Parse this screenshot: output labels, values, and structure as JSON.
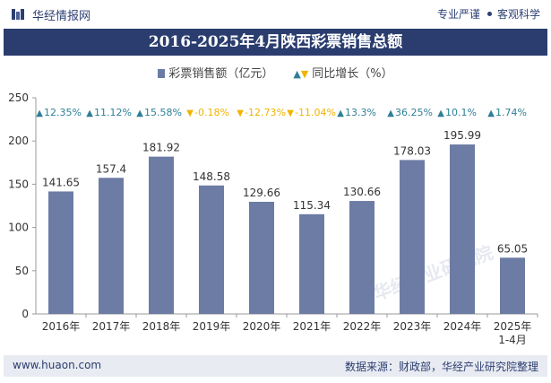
{
  "header": {
    "brand": "华经情报网",
    "tagline_left": "专业严谨",
    "tagline_right": "客观科学"
  },
  "title": "2016-2025年4月陕西彩票销售总额",
  "legend": {
    "bar_label": "彩票销售额（亿元）",
    "line_label": "同比增长（%）"
  },
  "watermark": "华经产业研究院",
  "footer": {
    "site": "www.huaon.com",
    "source": "数据来源：财政部，华经产业研究院整理"
  },
  "colors": {
    "bar": "#6c7ca4",
    "up": "#2f7f97",
    "down": "#f0b400",
    "banner": "#2b3d6f"
  },
  "chart_data": {
    "type": "bar",
    "categories": [
      "2016年",
      "2017年",
      "2018年",
      "2019年",
      "2020年",
      "2021年",
      "2022年",
      "2023年",
      "2024年",
      "2025年\n1-4月"
    ],
    "series": [
      {
        "name": "彩票销售额（亿元）",
        "values": [
          141.65,
          157.4,
          181.92,
          148.58,
          129.66,
          115.34,
          130.66,
          178.03,
          195.99,
          65.05
        ]
      },
      {
        "name": "同比增长（%）",
        "values": [
          12.35,
          11.12,
          15.58,
          -0.18,
          -12.73,
          -11.04,
          13.3,
          36.25,
          10.1,
          1.74
        ]
      }
    ],
    "value_labels": [
      "141.65",
      "157.4",
      "181.92",
      "148.58",
      "129.66",
      "115.34",
      "130.66",
      "178.03",
      "195.99",
      "65.05"
    ],
    "growth_labels": [
      "12.35%",
      "11.12%",
      "15.58%",
      "-0.18%",
      "-12.73%",
      "-11.04%",
      "13.3%",
      "36.25%",
      "10.1%",
      "1.74%"
    ],
    "ylim": [
      0,
      250
    ],
    "yticks": [
      0,
      50,
      100,
      150,
      200,
      250
    ],
    "grid": false,
    "legend_position": "top"
  }
}
